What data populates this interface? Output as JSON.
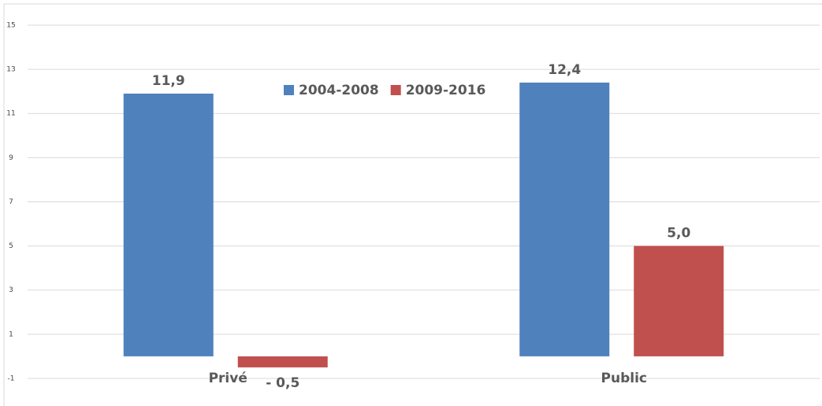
{
  "chart_data": {
    "type": "bar",
    "categories": [
      "Privé",
      "Public"
    ],
    "series": [
      {
        "name": "2004-2008",
        "color": "#4f81bd",
        "values": [
          11.9,
          12.4
        ],
        "value_labels": [
          "11,9",
          "12,4"
        ]
      },
      {
        "name": "2009-2016",
        "color": "#c0504d",
        "values": [
          -0.5,
          5.0
        ],
        "value_labels": [
          "- 0,5",
          "5,0"
        ]
      }
    ],
    "ylim": [
      -2,
      15
    ],
    "yticks": [
      -1,
      1,
      3,
      5,
      7,
      9,
      11,
      13,
      15
    ],
    "grid": true,
    "legend": "top"
  }
}
